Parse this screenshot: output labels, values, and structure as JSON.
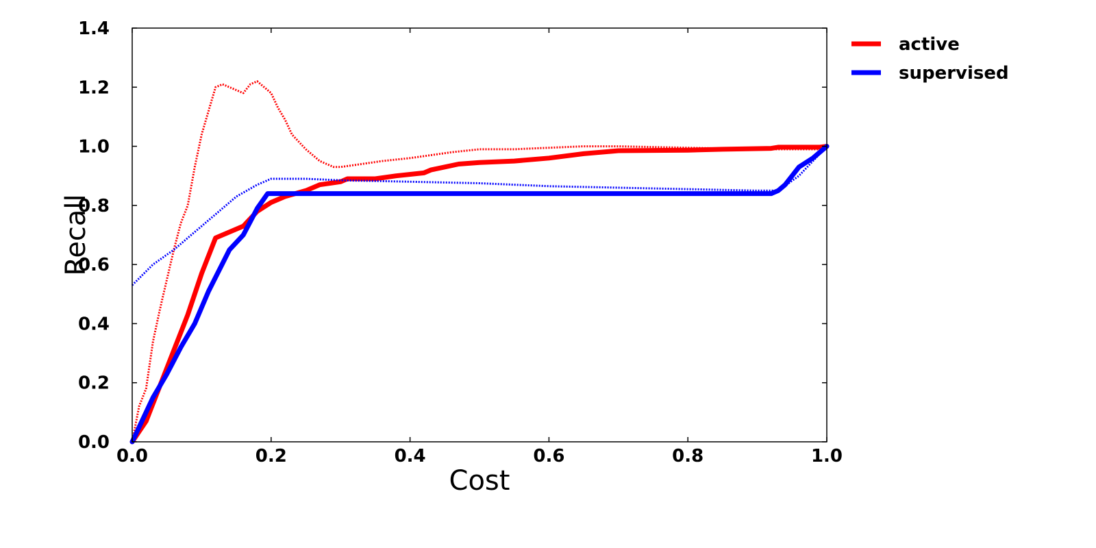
{
  "chart_data": {
    "type": "line",
    "xlabel": "Cost",
    "ylabel": "Recall",
    "xlim": [
      0.0,
      1.0
    ],
    "ylim": [
      0.0,
      1.4
    ],
    "xticks": [
      "0.0",
      "0.2",
      "0.4",
      "0.6",
      "0.8",
      "1.0"
    ],
    "yticks": [
      "0.0",
      "0.2",
      "0.4",
      "0.6",
      "0.8",
      "1.0",
      "1.2",
      "1.4"
    ],
    "legend_position": "outside-top-right",
    "grid": false,
    "series": [
      {
        "name": "active",
        "color": "#ff0000",
        "style": "solid",
        "x": [
          0.0,
          0.02,
          0.05,
          0.08,
          0.1,
          0.12,
          0.14,
          0.16,
          0.18,
          0.2,
          0.22,
          0.25,
          0.27,
          0.3,
          0.31,
          0.35,
          0.38,
          0.42,
          0.43,
          0.45,
          0.47,
          0.5,
          0.55,
          0.6,
          0.65,
          0.7,
          0.8,
          0.85,
          0.92,
          0.93,
          0.99,
          1.0
        ],
        "y": [
          0.0,
          0.07,
          0.25,
          0.43,
          0.57,
          0.69,
          0.71,
          0.73,
          0.78,
          0.81,
          0.83,
          0.85,
          0.87,
          0.88,
          0.89,
          0.89,
          0.9,
          0.91,
          0.92,
          0.93,
          0.94,
          0.945,
          0.95,
          0.96,
          0.975,
          0.985,
          0.987,
          0.99,
          0.993,
          0.997,
          0.997,
          1.0
        ]
      },
      {
        "name": "",
        "color": "#ff0000",
        "style": "dotted",
        "x": [
          0.0,
          0.01,
          0.02,
          0.03,
          0.04,
          0.05,
          0.06,
          0.07,
          0.08,
          0.09,
          0.1,
          0.11,
          0.12,
          0.13,
          0.14,
          0.15,
          0.16,
          0.17,
          0.18,
          0.19,
          0.2,
          0.21,
          0.22,
          0.23,
          0.25,
          0.27,
          0.29,
          0.3,
          0.33,
          0.36,
          0.4,
          0.43,
          0.46,
          0.5,
          0.55,
          0.6,
          0.65,
          0.7,
          0.8,
          0.9,
          1.0
        ],
        "y": [
          0.0,
          0.12,
          0.18,
          0.34,
          0.45,
          0.55,
          0.65,
          0.74,
          0.8,
          0.93,
          1.04,
          1.12,
          1.2,
          1.21,
          1.2,
          1.19,
          1.18,
          1.21,
          1.22,
          1.2,
          1.18,
          1.13,
          1.09,
          1.04,
          0.99,
          0.95,
          0.93,
          0.93,
          0.94,
          0.95,
          0.96,
          0.97,
          0.98,
          0.99,
          0.99,
          0.995,
          1.0,
          1.0,
          0.995,
          0.99,
          0.99
        ]
      },
      {
        "name": "supervised",
        "color": "#0000ff",
        "style": "solid",
        "x": [
          0.0,
          0.03,
          0.05,
          0.07,
          0.09,
          0.11,
          0.14,
          0.16,
          0.18,
          0.195,
          0.22,
          0.5,
          0.8,
          0.92,
          0.93,
          0.94,
          0.96,
          0.98,
          1.0
        ],
        "y": [
          0.0,
          0.15,
          0.23,
          0.32,
          0.4,
          0.51,
          0.65,
          0.7,
          0.79,
          0.84,
          0.84,
          0.84,
          0.84,
          0.84,
          0.85,
          0.87,
          0.93,
          0.96,
          1.0
        ]
      },
      {
        "name": "",
        "color": "#0000ff",
        "style": "dotted",
        "x": [
          0.0,
          0.03,
          0.06,
          0.09,
          0.12,
          0.15,
          0.18,
          0.2,
          0.25,
          0.3,
          0.4,
          0.5,
          0.6,
          0.7,
          0.8,
          0.9,
          0.93,
          0.96,
          1.0
        ],
        "y": [
          0.53,
          0.6,
          0.65,
          0.71,
          0.77,
          0.83,
          0.87,
          0.89,
          0.89,
          0.885,
          0.88,
          0.875,
          0.865,
          0.86,
          0.855,
          0.85,
          0.85,
          0.9,
          1.0
        ]
      }
    ]
  }
}
